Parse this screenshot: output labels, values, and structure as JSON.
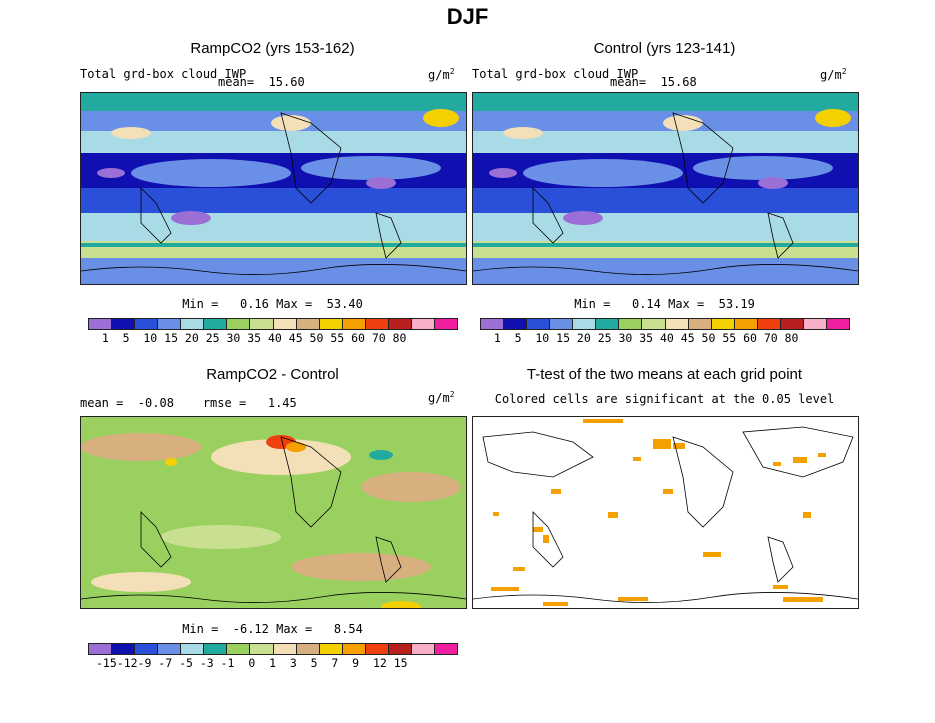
{
  "title": "DJF",
  "panel1": {
    "title": "RampCO2 (yrs 153-162)",
    "var_label": "Total grd-box cloud IWP",
    "mean_label": "mean=  15.60",
    "units": "g/m",
    "units_exp": "2",
    "minmax": "Min =   0.16 Max =  53.40"
  },
  "panel2": {
    "title": "Control (yrs 123-141)",
    "var_label": "Total grd-box cloud IWP",
    "mean_label": "mean=  15.68",
    "units": "g/m",
    "units_exp": "2",
    "minmax": "Min =   0.14 Max =  53.19"
  },
  "panel3": {
    "title": "RampCO2 - Control",
    "stats": "mean =  -0.08    rmse =   1.45",
    "units": "g/m",
    "units_exp": "2",
    "minmax": "Min =  -6.12 Max =   8.54"
  },
  "panel4": {
    "title": "T-test of the two means at each grid point",
    "subtitle": "Colored cells are significant at the 0.05 level"
  },
  "colorbar_abs": {
    "labels": "  1  5  10 15 20 25 30 35 40 45 50 55 60 70 80",
    "colors": [
      "#9b6fd6",
      "#1010b0",
      "#2a4fd8",
      "#6a8fe6",
      "#a8dbe6",
      "#22aaa0",
      "#9ad060",
      "#c8e090",
      "#f3e0b8",
      "#d8b080",
      "#f5d000",
      "#f5a000",
      "#f04010",
      "#b82020",
      "#f6b0c8",
      "#f020a0"
    ]
  },
  "colorbar_diff": {
    "labels": "-15-12-9 -7 -5 -3 -1  0  1  3  5  7  9  12 15",
    "colors": [
      "#9b6fd6",
      "#1010b0",
      "#2a4fd8",
      "#6a8fe6",
      "#a8dbe6",
      "#22aaa0",
      "#9ad060",
      "#c8e090",
      "#f3e0b8",
      "#d8b080",
      "#f5d000",
      "#f5a000",
      "#f04010",
      "#b82020",
      "#f6b0c8",
      "#f020a0"
    ]
  },
  "significance_color": "#f5a000"
}
